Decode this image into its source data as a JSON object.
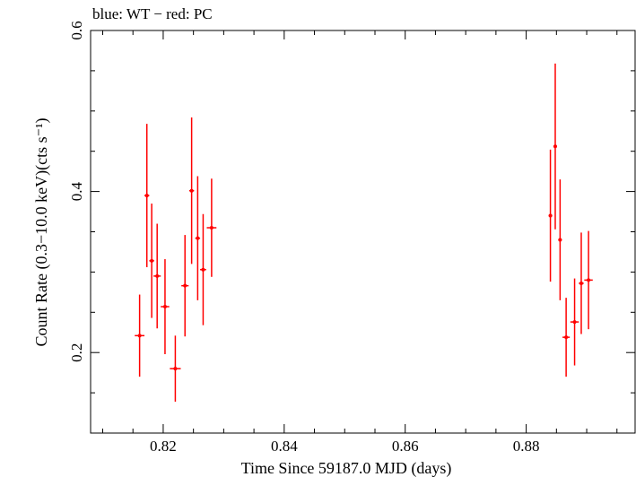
{
  "chart_data": {
    "type": "scatter",
    "title": "blue: WT − red: PC",
    "xlabel": "Time Since 59187.0 MJD (days)",
    "ylabel": "Count Rate (0.3−10.0 keV)(cts s⁻¹)",
    "xlim": [
      0.808,
      0.898
    ],
    "ylim": [
      0.1,
      0.6
    ],
    "x_ticks": [
      "0.82",
      "0.84",
      "0.86",
      "0.88"
    ],
    "y_ticks": [
      "0.2",
      "0.4",
      "0.6"
    ],
    "grid": false,
    "series": [
      {
        "color": "#ff0000",
        "points": [
          {
            "x": 0.8161,
            "xerr": 0.0008,
            "y": 0.221,
            "yerr_lo": 0.051,
            "yerr_hi": 0.051
          },
          {
            "x": 0.8173,
            "xerr": 0.0004,
            "y": 0.395,
            "yerr_lo": 0.089,
            "yerr_hi": 0.089
          },
          {
            "x": 0.8181,
            "xerr": 0.0004,
            "y": 0.314,
            "yerr_lo": 0.071,
            "yerr_hi": 0.071
          },
          {
            "x": 0.819,
            "xerr": 0.0006,
            "y": 0.295,
            "yerr_lo": 0.065,
            "yerr_hi": 0.065
          },
          {
            "x": 0.8203,
            "xerr": 0.0007,
            "y": 0.257,
            "yerr_lo": 0.059,
            "yerr_hi": 0.059
          },
          {
            "x": 0.822,
            "xerr": 0.0009,
            "y": 0.18,
            "yerr_lo": 0.041,
            "yerr_hi": 0.041
          },
          {
            "x": 0.8236,
            "xerr": 0.0006,
            "y": 0.283,
            "yerr_lo": 0.063,
            "yerr_hi": 0.063
          },
          {
            "x": 0.8247,
            "xerr": 0.0004,
            "y": 0.401,
            "yerr_lo": 0.091,
            "yerr_hi": 0.091
          },
          {
            "x": 0.8257,
            "xerr": 0.0004,
            "y": 0.342,
            "yerr_lo": 0.077,
            "yerr_hi": 0.077
          },
          {
            "x": 0.8266,
            "xerr": 0.0005,
            "y": 0.303,
            "yerr_lo": 0.069,
            "yerr_hi": 0.069
          },
          {
            "x": 0.828,
            "xerr": 0.0008,
            "y": 0.355,
            "yerr_lo": 0.061,
            "yerr_hi": 0.061
          },
          {
            "x": 0.884,
            "xerr": 0.0003,
            "y": 0.37,
            "yerr_lo": 0.082,
            "yerr_hi": 0.082
          },
          {
            "x": 0.8848,
            "xerr": 0.0003,
            "y": 0.456,
            "yerr_lo": 0.103,
            "yerr_hi": 0.103
          },
          {
            "x": 0.8856,
            "xerr": 0.0003,
            "y": 0.34,
            "yerr_lo": 0.075,
            "yerr_hi": 0.075
          },
          {
            "x": 0.8866,
            "xerr": 0.0006,
            "y": 0.219,
            "yerr_lo": 0.049,
            "yerr_hi": 0.049
          },
          {
            "x": 0.888,
            "xerr": 0.0007,
            "y": 0.238,
            "yerr_lo": 0.054,
            "yerr_hi": 0.054
          },
          {
            "x": 0.8891,
            "xerr": 0.0004,
            "y": 0.286,
            "yerr_lo": 0.063,
            "yerr_hi": 0.063
          },
          {
            "x": 0.8903,
            "xerr": 0.0007,
            "y": 0.29,
            "yerr_lo": 0.061,
            "yerr_hi": 0.061
          }
        ]
      }
    ]
  }
}
